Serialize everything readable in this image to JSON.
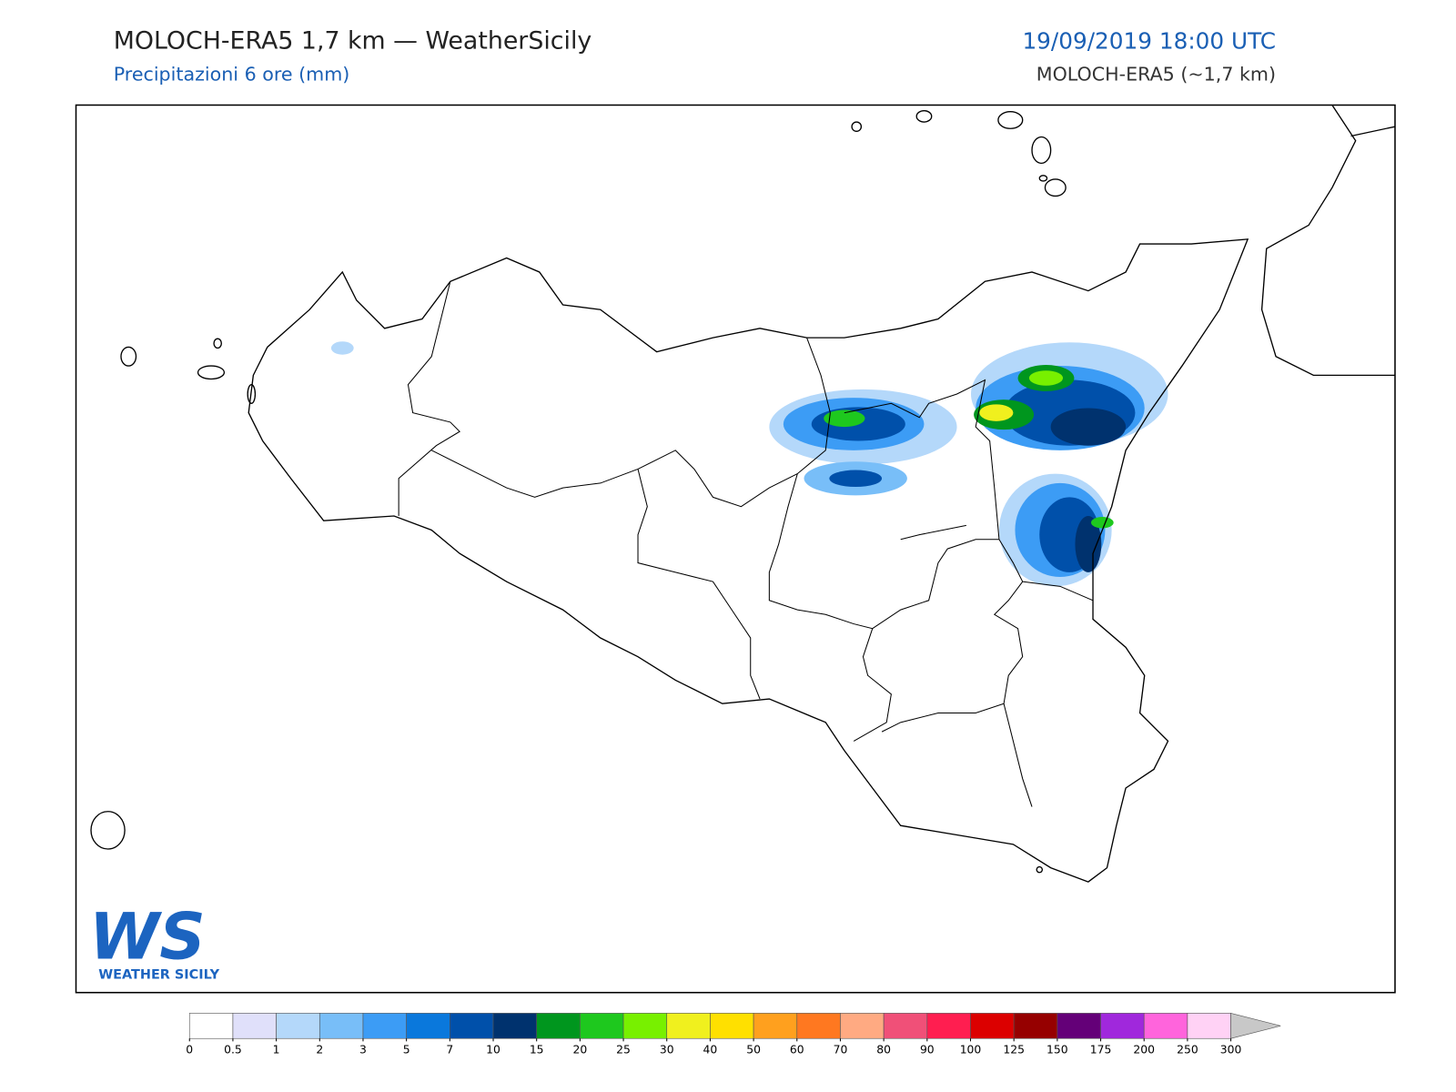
{
  "header": {
    "title": "MOLOCH-ERA5 1,7 km — WeatherSicily",
    "subtitle": "Precipitazioni 6 ore (mm)",
    "datetime": "19/09/2019 18:00 UTC",
    "model": "MOLOCH-ERA5 (~1,7 km)"
  },
  "logo": {
    "mark": "WS",
    "name": "WEATHER SICILY"
  },
  "colorbar": {
    "levels": [
      0,
      0.5,
      1,
      2,
      3,
      5,
      7,
      10,
      15,
      20,
      25,
      30,
      40,
      50,
      60,
      70,
      80,
      90,
      100,
      125,
      150,
      175,
      200,
      250,
      300
    ],
    "colors": [
      "#ffffff",
      "#e0e0fa",
      "#b4d8fa",
      "#78bef8",
      "#3c9cf5",
      "#0a78dc",
      "#0050aa",
      "#00326e",
      "#00961e",
      "#1ec81e",
      "#78f000",
      "#f0f01e",
      "#ffe000",
      "#ffa01e",
      "#ff7820",
      "#ffaa82",
      "#f05078",
      "#ff1e50",
      "#dc0000",
      "#960000",
      "#640078",
      "#a028dc",
      "#ff64dc",
      "#ffd2f5"
    ],
    "extend_color": "#c8c8c8"
  }
}
